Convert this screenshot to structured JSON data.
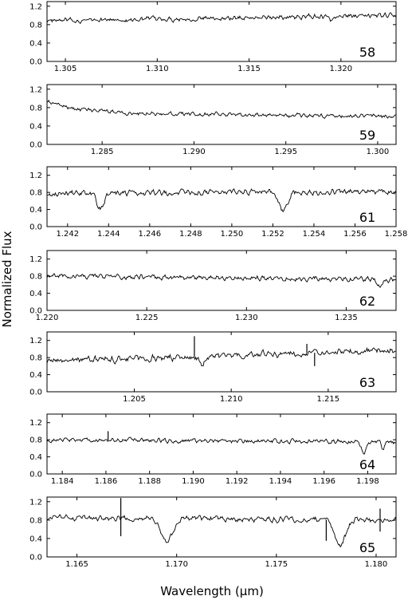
{
  "figure": {
    "xlabel": "Wavelength (μm)",
    "ylabel": "Normalized Flux"
  },
  "chart_data": [
    {
      "type": "line",
      "order_label": "58",
      "xlim": [
        1.304,
        1.323
      ],
      "ylim": [
        0.0,
        1.3
      ],
      "xticks": [
        1.305,
        1.31,
        1.315,
        1.32
      ],
      "xtick_labels": [
        "1.305",
        "1.310",
        "1.315",
        "1.320"
      ],
      "yticks": [
        0.0,
        0.4,
        0.8,
        1.2
      ],
      "ytick_labels": [
        "0.0",
        "0.4",
        "0.8",
        "1.2"
      ],
      "base": 0.88,
      "noise": 0.07,
      "dips": [
        [
          1.3195,
          0.12,
          0.00015
        ]
      ],
      "spikes": [],
      "trend": 0.12
    },
    {
      "type": "line",
      "order_label": "59",
      "xlim": [
        1.282,
        1.301
      ],
      "ylim": [
        0.0,
        1.3
      ],
      "xticks": [
        1.285,
        1.29,
        1.295,
        1.3
      ],
      "xtick_labels": [
        "1.285",
        "1.290",
        "1.295",
        "1.300"
      ],
      "yticks": [
        0.0,
        0.4,
        0.8,
        1.2
      ],
      "ytick_labels": [
        "0.0",
        "0.4",
        "0.8",
        "1.2"
      ],
      "base": 0.7,
      "noise": 0.06,
      "dips": [],
      "spikes": [],
      "trend": -0.1,
      "start_bump": 0.25
    },
    {
      "type": "line",
      "order_label": "61",
      "xlim": [
        1.241,
        1.258
      ],
      "ylim": [
        0.0,
        1.4
      ],
      "xticks": [
        1.242,
        1.244,
        1.246,
        1.248,
        1.25,
        1.252,
        1.254,
        1.256,
        1.258
      ],
      "xtick_labels": [
        "1.242",
        "1.244",
        "1.246",
        "1.248",
        "1.250",
        "1.252",
        "1.254",
        "1.256",
        "1.258"
      ],
      "yticks": [
        0.0,
        0.4,
        0.8,
        1.2
      ],
      "ytick_labels": [
        "0.0",
        "0.4",
        "0.8",
        "1.2"
      ],
      "base": 0.78,
      "noise": 0.09,
      "dips": [
        [
          1.2436,
          0.38,
          0.00025
        ],
        [
          1.2525,
          0.45,
          0.0003
        ]
      ],
      "spikes": [],
      "trend": 0.05
    },
    {
      "type": "line",
      "order_label": "62",
      "xlim": [
        1.22,
        1.2375
      ],
      "ylim": [
        0.0,
        1.4
      ],
      "xticks": [
        1.22,
        1.225,
        1.23,
        1.235
      ],
      "xtick_labels": [
        "1.220",
        "1.225",
        "1.230",
        "1.235"
      ],
      "yticks": [
        0.0,
        0.4,
        0.8,
        1.2
      ],
      "ytick_labels": [
        "0.0",
        "0.4",
        "0.8",
        "1.2"
      ],
      "base": 0.8,
      "noise": 0.08,
      "dips": [
        [
          1.2367,
          0.15,
          0.0002
        ]
      ],
      "spikes": [],
      "trend": -0.08
    },
    {
      "type": "line",
      "order_label": "63",
      "xlim": [
        1.2005,
        1.2185
      ],
      "ylim": [
        0.0,
        1.4
      ],
      "xticks": [
        1.205,
        1.21,
        1.215
      ],
      "xtick_labels": [
        "1.205",
        "1.210",
        "1.215"
      ],
      "yticks": [
        0.0,
        0.4,
        0.8,
        1.2
      ],
      "ytick_labels": [
        "0.0",
        "0.4",
        "0.8",
        "1.2"
      ],
      "base": 0.72,
      "noise": 0.1,
      "dips": [
        [
          1.2085,
          0.2,
          0.0002
        ]
      ],
      "spikes": [
        [
          1.2081,
          1.3
        ],
        [
          1.2139,
          1.12
        ],
        [
          1.2143,
          0.6
        ]
      ],
      "trend": 0.25
    },
    {
      "type": "line",
      "order_label": "64",
      "xlim": [
        1.1833,
        1.1993
      ],
      "ylim": [
        0.0,
        1.4
      ],
      "xticks": [
        1.184,
        1.186,
        1.188,
        1.19,
        1.192,
        1.194,
        1.196,
        1.198
      ],
      "xtick_labels": [
        "1.184",
        "1.186",
        "1.188",
        "1.190",
        "1.192",
        "1.194",
        "1.196",
        "1.198"
      ],
      "yticks": [
        0.0,
        0.4,
        0.8,
        1.2
      ],
      "ytick_labels": [
        "0.0",
        "0.4",
        "0.8",
        "1.2"
      ],
      "base": 0.8,
      "noise": 0.07,
      "dips": [
        [
          1.1978,
          0.25,
          0.00015
        ],
        [
          1.1987,
          0.2,
          0.0001
        ]
      ],
      "spikes": [
        [
          1.1861,
          1.0
        ]
      ],
      "trend": -0.05
    },
    {
      "type": "line",
      "order_label": "65",
      "xlim": [
        1.1635,
        1.181
      ],
      "ylim": [
        0.0,
        1.3
      ],
      "xticks": [
        1.165,
        1.17,
        1.175,
        1.18
      ],
      "xtick_labels": [
        "1.165",
        "1.170",
        "1.175",
        "1.180"
      ],
      "yticks": [
        0.0,
        0.4,
        0.8,
        1.2
      ],
      "ytick_labels": [
        "0.0",
        "0.4",
        "0.8",
        "1.2"
      ],
      "base": 0.85,
      "noise": 0.08,
      "dips": [
        [
          1.1695,
          0.52,
          0.0004
        ],
        [
          1.1782,
          0.55,
          0.0004
        ]
      ],
      "spikes": [
        [
          1.1672,
          1.28
        ],
        [
          1.1672,
          0.45
        ],
        [
          1.1775,
          0.35
        ],
        [
          1.1802,
          1.05
        ],
        [
          1.1802,
          0.55
        ]
      ],
      "trend": -0.05
    }
  ]
}
